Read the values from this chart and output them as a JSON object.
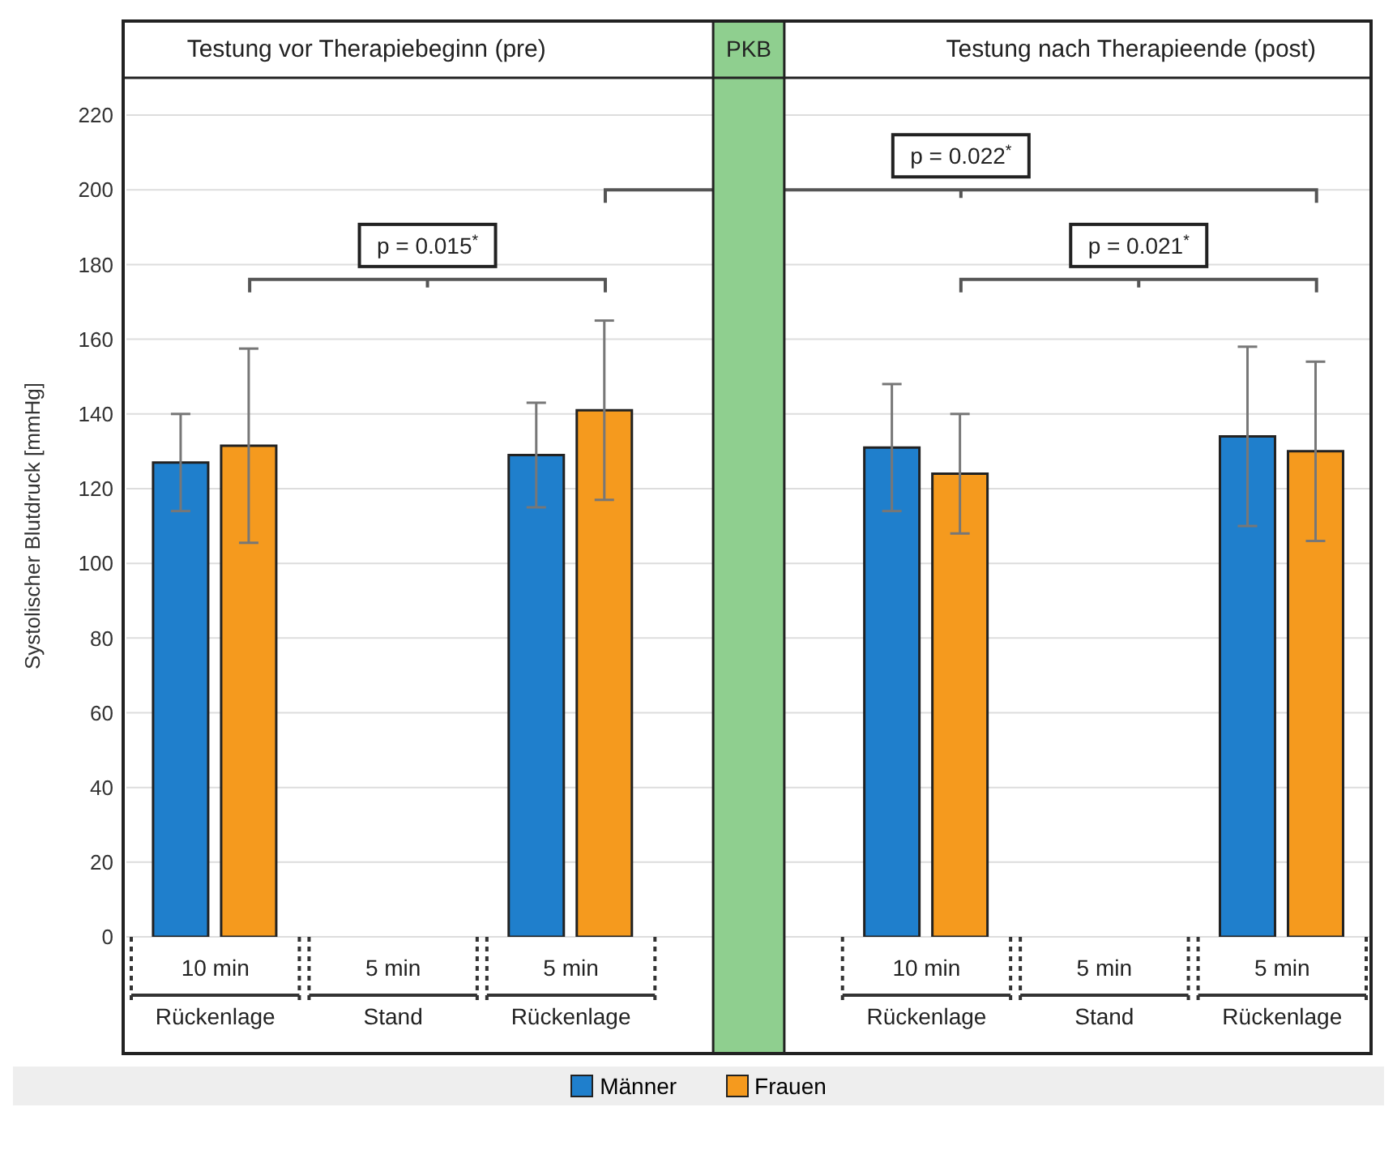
{
  "chart_data": {
    "type": "bar",
    "ylabel": "Systolischer Blutdruck [mmHg]",
    "categories": [
      "10 min Rückenlage",
      "5 min Stand",
      "5 min Rückenlage",
      "PKB",
      "10 min Rückenlage",
      "5 min Stand",
      "5 min Rückenlage"
    ],
    "series": [
      {
        "name": "Männer",
        "color": "#1f7fcc",
        "values": [
          127,
          null,
          129,
          null,
          131,
          null,
          134
        ],
        "errors": [
          13,
          null,
          14,
          null,
          17,
          null,
          24
        ]
      },
      {
        "name": "Frauen",
        "color": "#f59a1e",
        "values": [
          131.5,
          null,
          141,
          null,
          124,
          null,
          130
        ],
        "errors": [
          26,
          null,
          24,
          null,
          16,
          null,
          24
        ]
      }
    ],
    "ylim": [
      0,
      230
    ],
    "yticks": [
      0,
      20,
      40,
      60,
      80,
      100,
      120,
      140,
      160,
      180,
      200,
      220
    ],
    "grid": "y",
    "legend": "bottom",
    "bands": [
      {
        "axis": "x",
        "from": "PKB",
        "to": "PKB",
        "color": "#8fcf8f"
      }
    ],
    "annotations": [
      "Testung vor Therapiebeginn (pre)",
      "Testung nach Therapieende (post)",
      "p = 0.015$^{*}$",
      "p = 0.022$^{*}$",
      "p = 0.021$^{*}$"
    ]
  }
}
